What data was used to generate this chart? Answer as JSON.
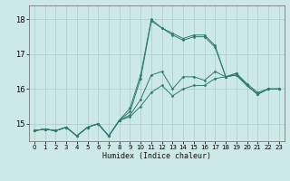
{
  "xlabel": "Humidex (Indice chaleur)",
  "bg_color": "#cce8e8",
  "grid_color": "#aacccc",
  "line_color": "#2e7d6e",
  "x_ticks": [
    0,
    1,
    2,
    3,
    4,
    5,
    6,
    7,
    8,
    9,
    10,
    11,
    12,
    13,
    14,
    15,
    16,
    17,
    18,
    19,
    20,
    21,
    22,
    23
  ],
  "ylim": [
    14.5,
    18.4
  ],
  "yticks": [
    15,
    16,
    17,
    18
  ],
  "series": [
    [
      14.8,
      14.85,
      14.8,
      14.9,
      14.65,
      14.9,
      15.0,
      14.65,
      15.1,
      15.45,
      16.4,
      18.0,
      17.75,
      17.6,
      17.45,
      17.55,
      17.55,
      17.25,
      16.35,
      16.45,
      16.15,
      15.9,
      16.0,
      16.0
    ],
    [
      14.8,
      14.85,
      14.8,
      14.9,
      14.65,
      14.9,
      15.0,
      14.65,
      15.1,
      15.35,
      16.3,
      17.95,
      17.75,
      17.55,
      17.4,
      17.5,
      17.5,
      17.2,
      16.35,
      16.4,
      16.1,
      15.85,
      16.0,
      16.0
    ],
    [
      14.8,
      14.85,
      14.8,
      14.9,
      14.65,
      14.9,
      15.0,
      14.65,
      15.1,
      15.25,
      15.7,
      16.4,
      16.5,
      16.0,
      16.35,
      16.35,
      16.25,
      16.5,
      16.35,
      16.45,
      16.1,
      15.85,
      16.0,
      16.0
    ],
    [
      14.8,
      14.85,
      14.8,
      14.9,
      14.65,
      14.9,
      15.0,
      14.65,
      15.1,
      15.2,
      15.5,
      15.9,
      16.1,
      15.8,
      16.0,
      16.1,
      16.1,
      16.3,
      16.35,
      16.4,
      16.1,
      15.85,
      16.0,
      16.0
    ]
  ]
}
